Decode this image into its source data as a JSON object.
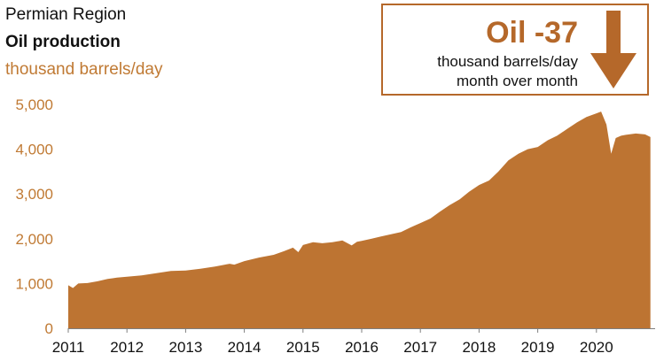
{
  "header": {
    "region": "Permian Region",
    "title": "Oil production",
    "unit": "thousand barrels/day"
  },
  "callout": {
    "value": "Oil -37",
    "line1": "thousand barrels/day",
    "line2": "month over month",
    "icon": "down-arrow-icon"
  },
  "colors": {
    "area": "#bd7432",
    "accent": "#b5682a",
    "ytick": "#c07a34",
    "xtick": "#111111",
    "axis": "#7f7f7f"
  },
  "chart_data": {
    "type": "area",
    "title": "Oil production",
    "subtitle": "Permian Region",
    "ylabel": "thousand barrels/day",
    "ylim": [
      0,
      5000
    ],
    "xlim": [
      2011,
      2021
    ],
    "grid": false,
    "yticks": [
      "0",
      "1,000",
      "2,000",
      "3,000",
      "4,000",
      "5,000"
    ],
    "ytick_values": [
      0,
      1000,
      2000,
      3000,
      4000,
      5000
    ],
    "xticks": [
      "2011",
      "2012",
      "2013",
      "2014",
      "2015",
      "2016",
      "2017",
      "2018",
      "2019",
      "2020"
    ],
    "xtick_values": [
      2011,
      2012,
      2013,
      2014,
      2015,
      2016,
      2017,
      2018,
      2019,
      2020
    ],
    "series": [
      {
        "x": [
          2011.0,
          2011.08,
          2011.17,
          2011.33,
          2011.5,
          2011.67,
          2011.83,
          2012.0,
          2012.25,
          2012.5,
          2012.75,
          2013.0,
          2013.25,
          2013.5,
          2013.75,
          2013.83,
          2014.0,
          2014.25,
          2014.5,
          2014.67,
          2014.83,
          2014.92,
          2015.0,
          2015.17,
          2015.33,
          2015.5,
          2015.67,
          2015.83,
          2015.92,
          2016.0,
          2016.17,
          2016.33,
          2016.5,
          2016.67,
          2016.83,
          2017.0,
          2017.17,
          2017.33,
          2017.5,
          2017.67,
          2017.83,
          2018.0,
          2018.17,
          2018.33,
          2018.5,
          2018.67,
          2018.83,
          2019.0,
          2019.17,
          2019.33,
          2019.5,
          2019.67,
          2019.83,
          2020.0,
          2020.08,
          2020.17,
          2020.25,
          2020.33,
          2020.42,
          2020.5,
          2020.67,
          2020.83,
          2020.92
        ],
        "values": [
          960,
          900,
          1000,
          1010,
          1050,
          1100,
          1130,
          1150,
          1180,
          1230,
          1280,
          1290,
          1330,
          1380,
          1440,
          1420,
          1500,
          1580,
          1640,
          1720,
          1800,
          1700,
          1860,
          1920,
          1900,
          1920,
          1960,
          1850,
          1930,
          1950,
          2000,
          2050,
          2100,
          2150,
          2250,
          2350,
          2450,
          2600,
          2750,
          2880,
          3050,
          3200,
          3300,
          3500,
          3750,
          3900,
          4000,
          4050,
          4200,
          4300,
          4450,
          4600,
          4720,
          4800,
          4840,
          4550,
          3900,
          4250,
          4300,
          4320,
          4350,
          4330,
          4270
        ]
      }
    ]
  }
}
